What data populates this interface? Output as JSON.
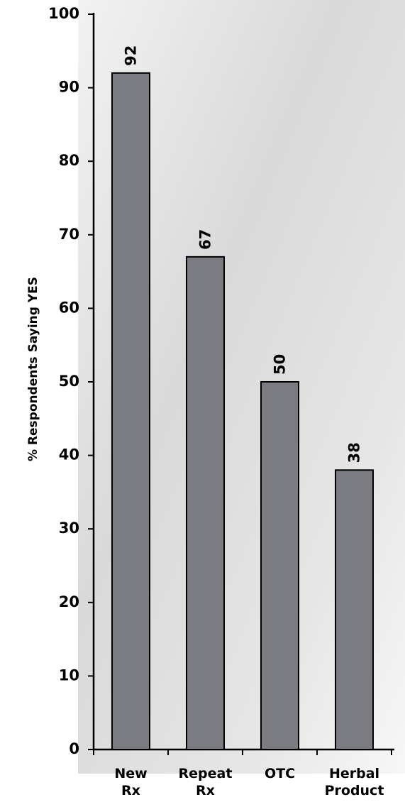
{
  "chart_data": {
    "type": "bar",
    "y_label": "% Respondents Saying YES",
    "categories": [
      [
        "New",
        "Rx"
      ],
      [
        "Repeat",
        "Rx"
      ],
      [
        "OTC"
      ],
      [
        "Herbal",
        "Product"
      ]
    ],
    "values": [
      92,
      67,
      50,
      38
    ],
    "color": "#7b7c81",
    "ylim": [
      0,
      100
    ],
    "yticks": [
      0,
      10,
      20,
      30,
      40,
      50,
      60,
      70,
      80,
      90,
      100
    ],
    "grid": false
  }
}
